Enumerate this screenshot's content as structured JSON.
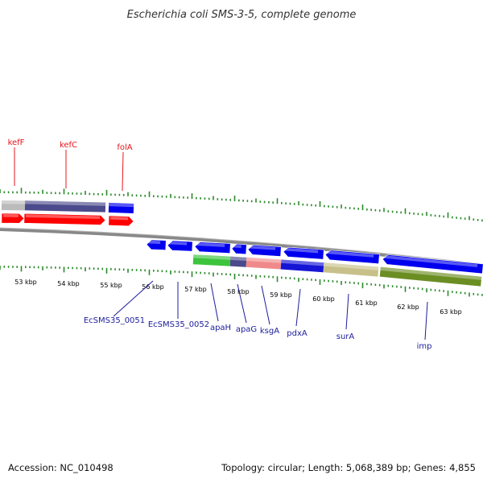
{
  "header": {
    "title": "Escherichia coli SMS-3-5, complete genome"
  },
  "footer": {
    "accession": "Accession: NC_010498",
    "stats": "Topology: circular; Length: 5,068,389 bp; Genes: 4,855"
  },
  "colors": {
    "ticks": "#2a8a2a",
    "backbone": "#888888",
    "forward_cds": "#ff0000",
    "reverse_cds": "#0000ff",
    "upper_label": "#e8141c",
    "lower_label": "#1c1c9c"
  },
  "kbp_labels": [
    "53 kbp",
    "54 kbp",
    "55 kbp",
    "56 kbp",
    "57 kbp",
    "58 kbp",
    "59 kbp",
    "60 kbp",
    "61 kbp",
    "62 kbp",
    "63 kbp"
  ],
  "upper_gene_labels": [
    "kefF",
    "kefC",
    "folA"
  ],
  "lower_gene_labels": [
    "EcSMS35_0051",
    "EcSMS35_0052",
    "apaH",
    "apaG",
    "ksgA",
    "pdxA",
    "surA",
    "imp"
  ],
  "features": {
    "upper_bands": [
      {
        "color": "#bbbbbb"
      },
      {
        "color": "#4a4a8c"
      },
      {
        "color": "#0000ee"
      }
    ],
    "upper_arrows": [
      {
        "color": "#ff0000"
      },
      {
        "color": "#ff0000"
      },
      {
        "color": "#ff0000"
      }
    ],
    "lower_arrows": [
      {
        "color": "#0000ee"
      },
      {
        "color": "#0000ee"
      },
      {
        "color": "#0000ee"
      },
      {
        "color": "#0000ee"
      },
      {
        "color": "#0000ee"
      },
      {
        "color": "#0000ee"
      },
      {
        "color": "#0000ee"
      },
      {
        "color": "#0000ee"
      }
    ],
    "lower_bands": [
      {
        "color": "#3cc43c"
      },
      {
        "color": "#4a4a8c"
      },
      {
        "color": "#f08a8a"
      },
      {
        "color": "#1515d6"
      },
      {
        "color": "#c8c08a"
      },
      {
        "color": "#6b8e23"
      }
    ]
  }
}
